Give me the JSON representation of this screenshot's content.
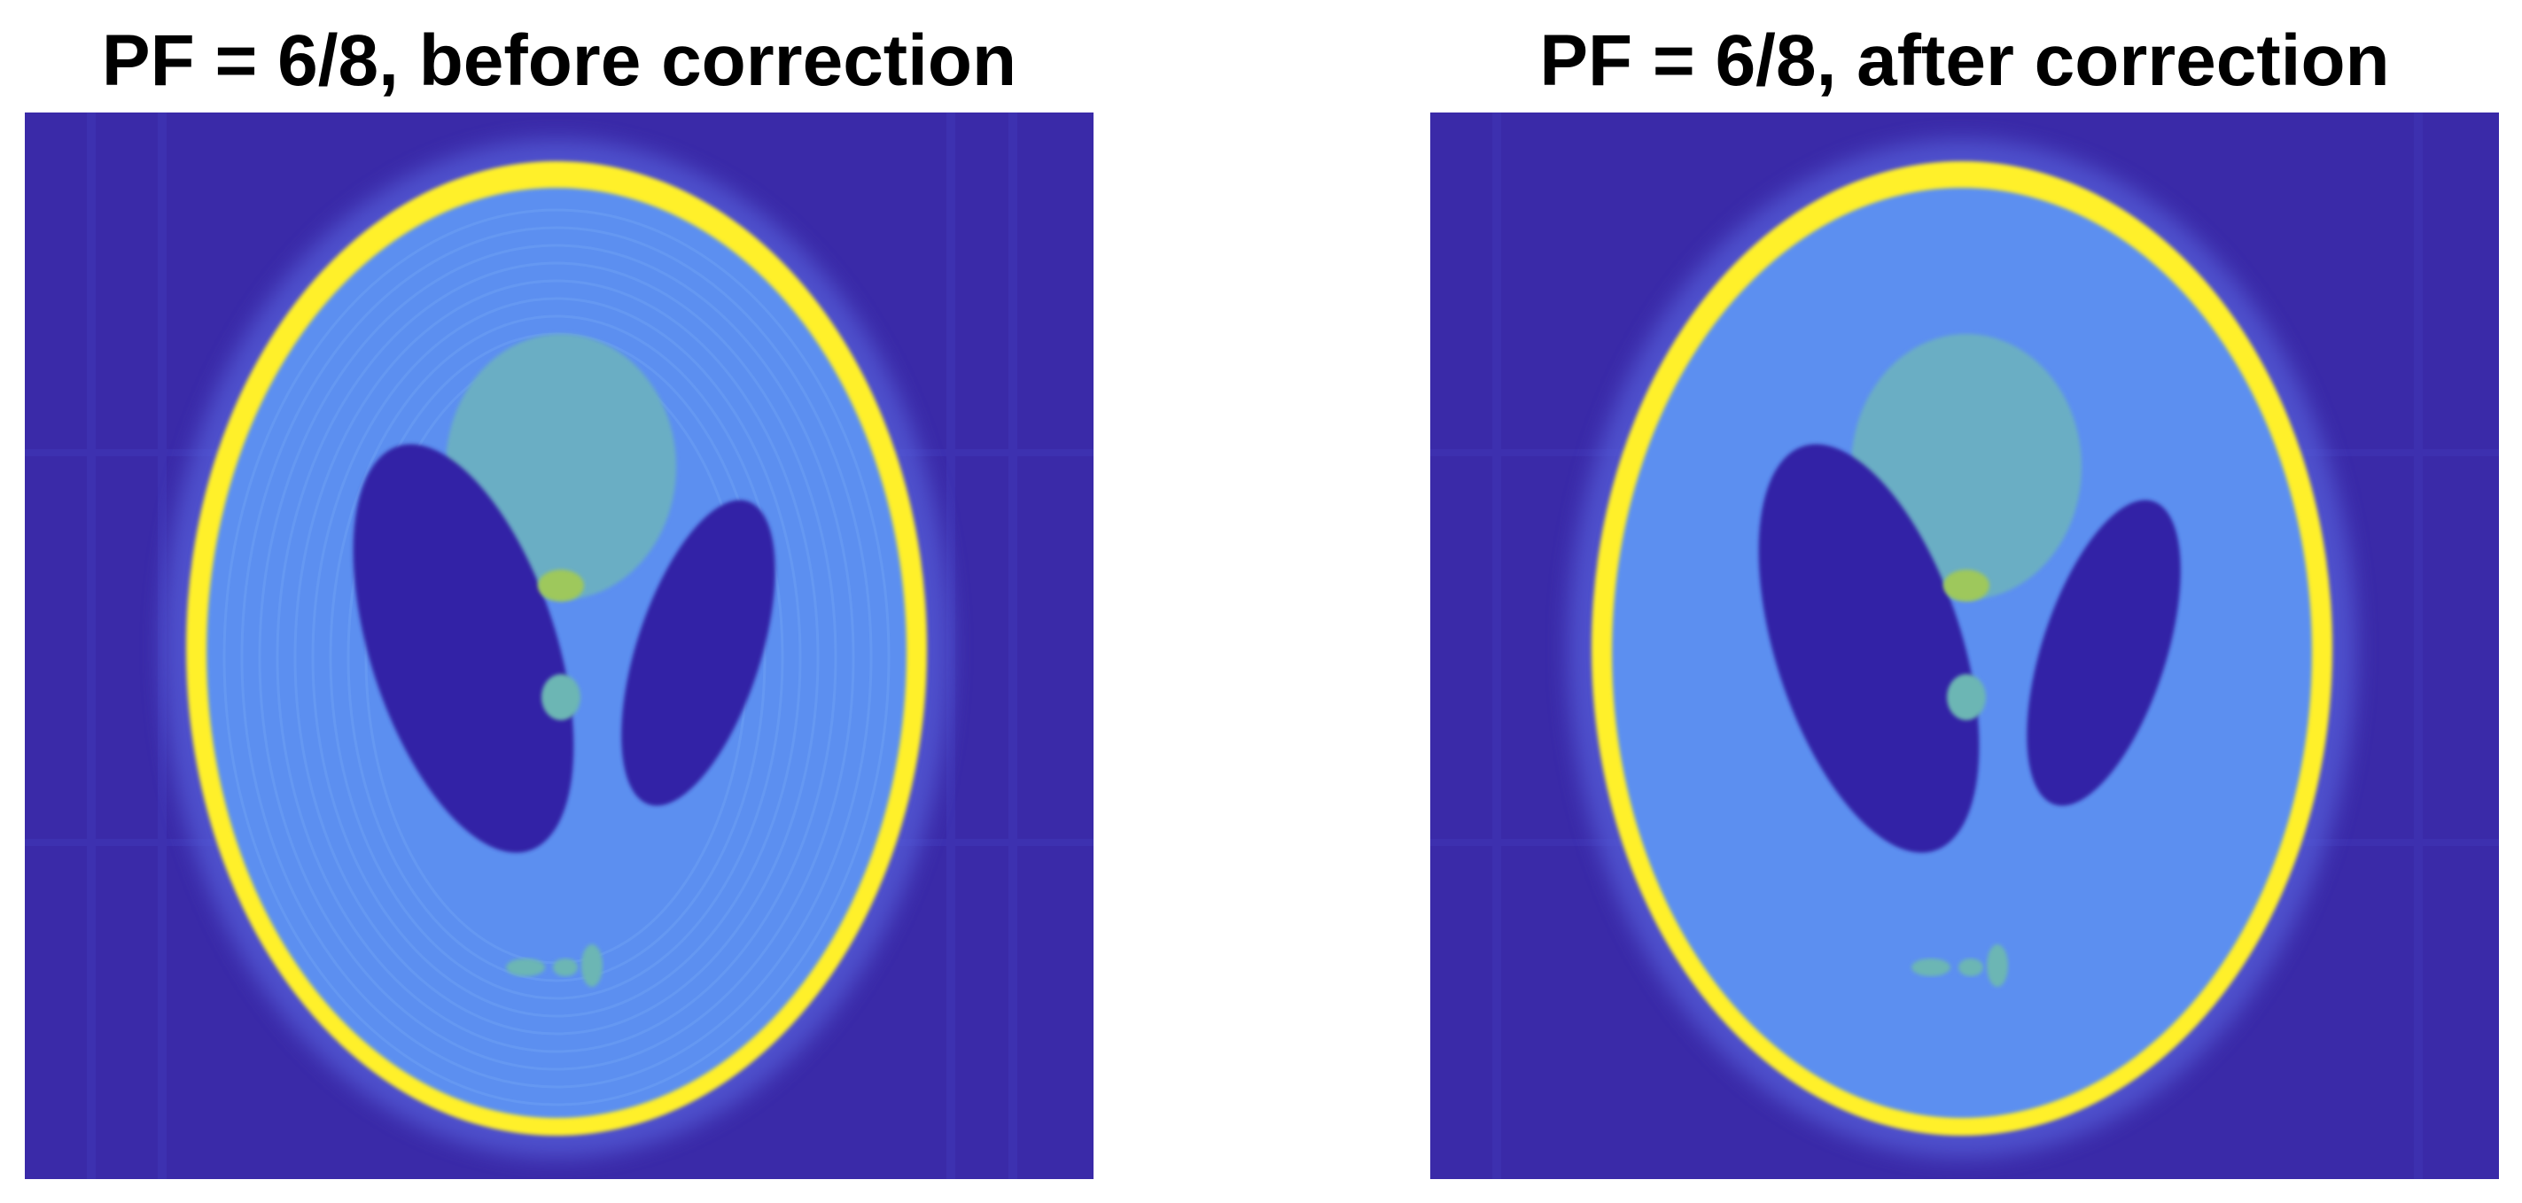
{
  "panels": [
    {
      "title": "PF = 6/8, before correction",
      "ringing_artifacts": true
    },
    {
      "title": "PF = 6/8, after correction",
      "ringing_artifacts": false
    }
  ],
  "colors": {
    "background": "#3a2aa8",
    "skull_outer": "#fff02a",
    "brain": "#5b8ff0",
    "ventricle_dark": "#3324a6",
    "upper_lobe": "#6aaec4",
    "small_spot": "#6cb6b4",
    "bright_spot": "#9ec85c"
  }
}
